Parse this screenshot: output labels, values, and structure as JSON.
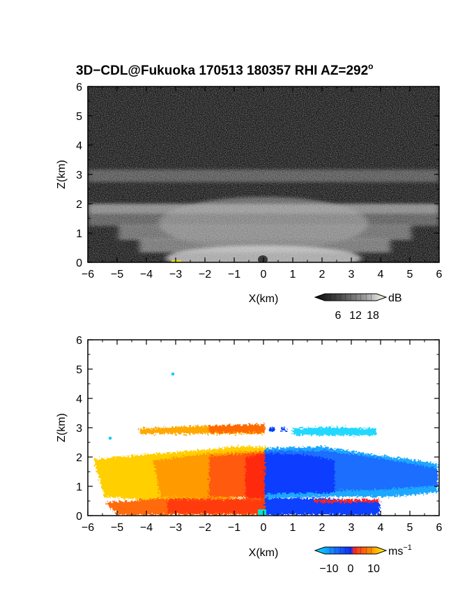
{
  "title_main": "3D−CDL@Fukuoka 170513 180357 RHI AZ=292",
  "title_sup": "o",
  "panels": [
    {
      "id": "reflectivity",
      "xlabel": "X(km)",
      "ylabel": "Z(km)",
      "colorbar": {
        "unit": "dB",
        "ticks": [
          "6",
          "12",
          "18"
        ],
        "colors": [
          "#111111",
          "#555555",
          "#999999",
          "#dddddd",
          "#ffff66"
        ]
      }
    },
    {
      "id": "doppler",
      "xlabel": "X(km)",
      "ylabel": "Z(km)",
      "colorbar": {
        "unit": "ms",
        "unit_sup": "−1",
        "ticks": [
          "−10",
          "0",
          "10"
        ],
        "colors": [
          "#00e5ff",
          "#1050ff",
          "#ff2020",
          "#ff8800",
          "#ffff00"
        ]
      }
    }
  ],
  "chart_data": [
    {
      "type": "heatmap",
      "title": "3D−CDL@Fukuoka 170513 180357 RHI AZ=292°",
      "xlabel": "X(km)",
      "ylabel": "Z(km)",
      "xlim": [
        -6,
        6
      ],
      "ylim": [
        0,
        6
      ],
      "xticks": [
        -6,
        -5,
        -4,
        -3,
        -2,
        -1,
        0,
        1,
        2,
        3,
        4,
        5,
        6
      ],
      "yticks": [
        0,
        1,
        2,
        3,
        4,
        5,
        6
      ],
      "colorbar_unit": "dB",
      "colorbar_ticks": [
        6,
        12,
        18
      ],
      "features": [
        {
          "kind": "band",
          "z_range": [
            2.7,
            3.1
          ],
          "x_range": [
            -6,
            6
          ],
          "level_db": 10
        },
        {
          "kind": "band",
          "z_range": [
            1.7,
            2.0
          ],
          "x_range": [
            -6,
            6
          ],
          "level_db": 14
        },
        {
          "kind": "band",
          "z_range": [
            1.2,
            1.6
          ],
          "x_range": [
            -6,
            6
          ],
          "level_db": 12
        },
        {
          "kind": "band",
          "z_range": [
            0.4,
            1.1
          ],
          "x_range": [
            -4,
            4
          ],
          "level_db": 13
        },
        {
          "kind": "band",
          "z_range": [
            0.0,
            0.4
          ],
          "x_range": [
            -3,
            3
          ],
          "level_db": 16
        }
      ]
    },
    {
      "type": "heatmap",
      "xlabel": "X(km)",
      "ylabel": "Z(km)",
      "xlim": [
        -6,
        6
      ],
      "ylim": [
        0,
        6
      ],
      "xticks": [
        -6,
        -5,
        -4,
        -3,
        -2,
        -1,
        0,
        1,
        2,
        3,
        4,
        5,
        6
      ],
      "yticks": [
        0,
        1,
        2,
        3,
        4,
        5,
        6
      ],
      "colorbar_unit": "ms⁻¹",
      "colorbar_ticks": [
        -10,
        0,
        10
      ],
      "features": [
        {
          "kind": "layer",
          "z_range": [
            0.5,
            2.1
          ],
          "x_range": [
            -5.8,
            0.1
          ],
          "velocity": 6
        },
        {
          "kind": "layer",
          "z_range": [
            0.5,
            2.0
          ],
          "x_range": [
            0.1,
            6.0
          ],
          "velocity": -8
        },
        {
          "kind": "layer",
          "z_range": [
            0.0,
            0.5
          ],
          "x_range": [
            -5.3,
            0.1
          ],
          "velocity": 3
        },
        {
          "kind": "layer",
          "z_range": [
            0.0,
            0.5
          ],
          "x_range": [
            0.1,
            4.0
          ],
          "velocity": -10
        },
        {
          "kind": "layer",
          "z_range": [
            2.7,
            3.0
          ],
          "x_range": [
            -4.3,
            -0.3
          ],
          "velocity": 8
        },
        {
          "kind": "layer",
          "z_range": [
            2.6,
            3.0
          ],
          "x_range": [
            1.0,
            4.0
          ],
          "velocity": -12
        }
      ]
    }
  ]
}
